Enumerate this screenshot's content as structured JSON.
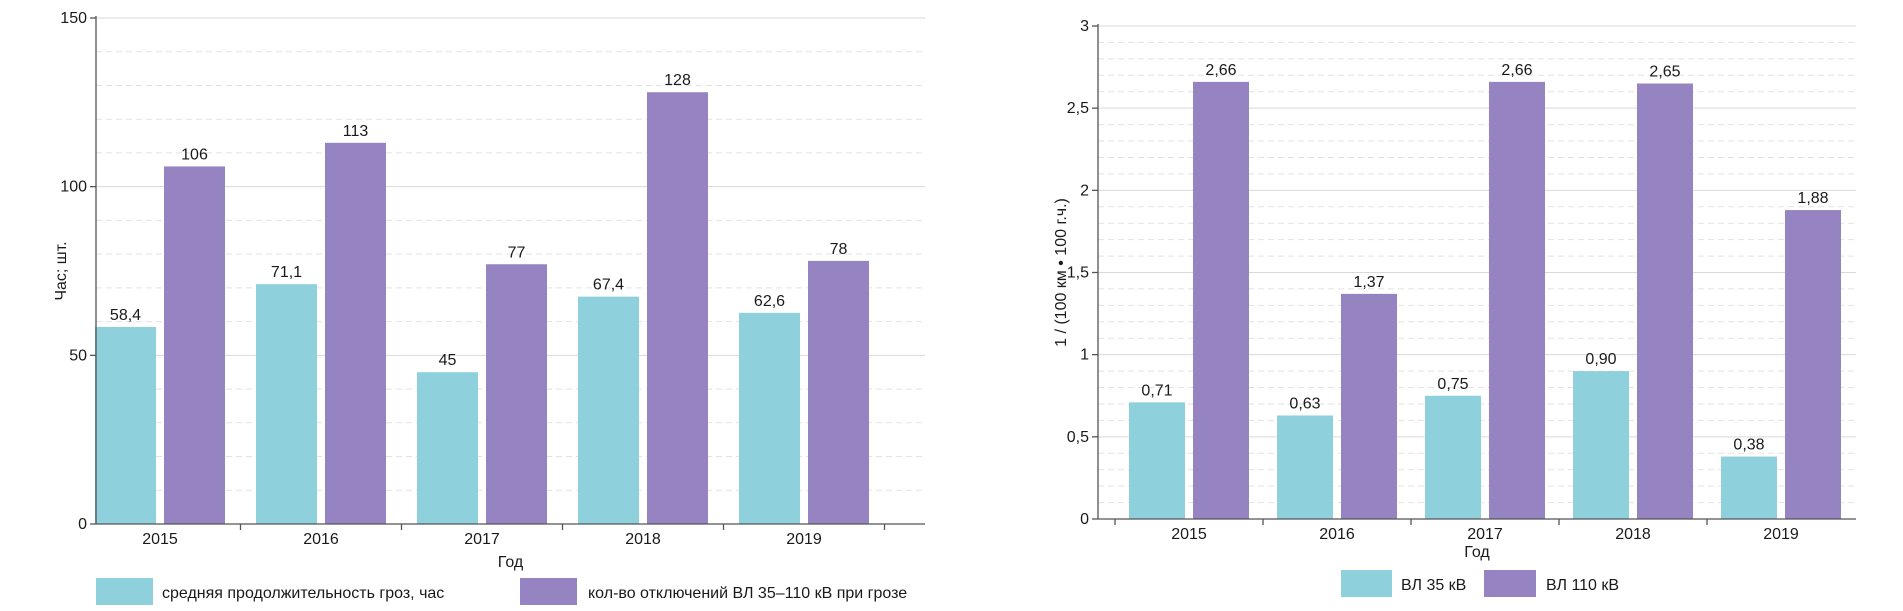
{
  "colors": {
    "series_a": "#8ed1dc",
    "series_b": "#9683c1",
    "grid_major": "#d9d9d9",
    "grid_minor": "#e2e2e2",
    "axis": "#555555"
  },
  "chart_data": [
    {
      "type": "bar",
      "categories": [
        "2015",
        "2016",
        "2017",
        "2018",
        "2019"
      ],
      "series": [
        {
          "name": "средняя продолжительность гроз, час",
          "values": [
            58.4,
            71.1,
            45,
            67.4,
            62.6
          ],
          "labels": [
            "58,4",
            "71,1",
            "45",
            "67,4",
            "62,6"
          ]
        },
        {
          "name": "кол-во отключений ВЛ 35–110 кВ при грозе",
          "values": [
            106,
            113,
            77,
            128,
            78
          ],
          "labels": [
            "106",
            "113",
            "77",
            "128",
            "78"
          ]
        }
      ],
      "xlabel": "Год",
      "ylabel": "Час; шт.",
      "ylim": [
        0,
        150
      ],
      "yticks": [
        0,
        50,
        100,
        150
      ],
      "ytick_labels": [
        "0",
        "50",
        "100",
        "150"
      ],
      "grid": true,
      "legend_position": "bottom"
    },
    {
      "type": "bar",
      "categories": [
        "2015",
        "2016",
        "2017",
        "2018",
        "2019"
      ],
      "series": [
        {
          "name": "ВЛ 35 кВ",
          "values": [
            0.71,
            0.63,
            0.75,
            0.9,
            0.38
          ],
          "labels": [
            "0,71",
            "0,63",
            "0,75",
            "0,90",
            "0,38"
          ]
        },
        {
          "name": "ВЛ 110 кВ",
          "values": [
            2.66,
            1.37,
            2.66,
            2.65,
            1.88
          ],
          "labels": [
            "2,66",
            "1,37",
            "2,66",
            "2,65",
            "1,88"
          ]
        }
      ],
      "xlabel": "Год",
      "ylabel": "1 / (100 км • 100 г.ч.)",
      "ylim": [
        0,
        3
      ],
      "yticks": [
        0,
        0.5,
        1,
        1.5,
        2,
        2.5,
        3
      ],
      "ytick_labels": [
        "0",
        "0,5",
        "1",
        "1,5",
        "2",
        "2,5",
        "3"
      ],
      "grid": true,
      "legend_position": "bottom"
    }
  ]
}
